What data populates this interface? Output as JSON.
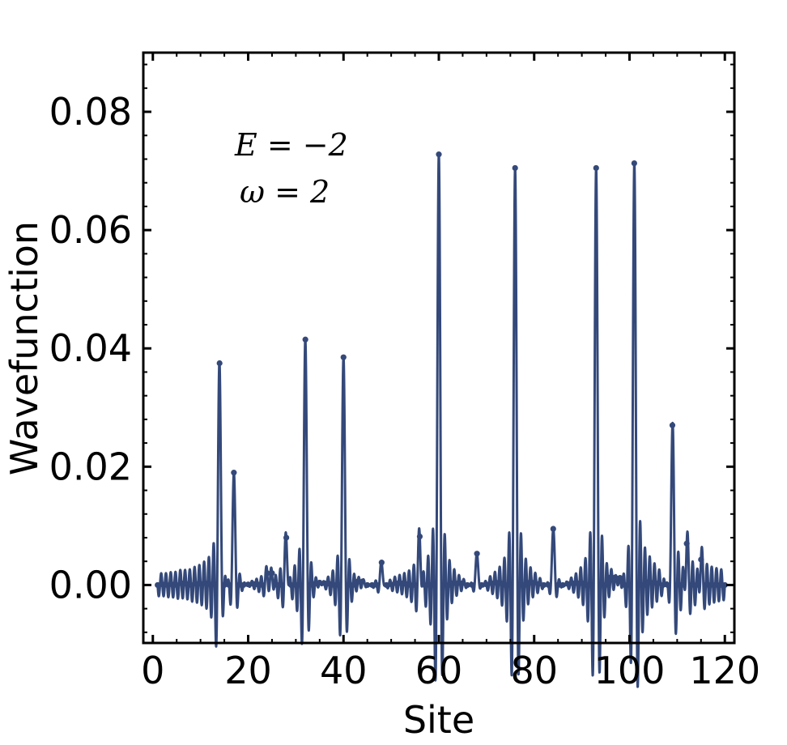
{
  "chart_data": {
    "type": "line",
    "title": "",
    "xlabel": "Site",
    "ylabel": "Wavefunction",
    "xlim": [
      -2,
      122
    ],
    "ylim": [
      -0.0098,
      0.09
    ],
    "xticks": [
      0,
      20,
      40,
      60,
      80,
      100,
      120
    ],
    "xtick_labels": [
      "0",
      "20",
      "40",
      "60",
      "80",
      "100",
      "120"
    ],
    "yticks": [
      0.0,
      0.02,
      0.04,
      0.06,
      0.08
    ],
    "ytick_labels": [
      "0.00",
      "0.02",
      "0.04",
      "0.06",
      "0.08"
    ],
    "grid": false,
    "line_color": "#34497a",
    "annotations": [
      "E = −2",
      "ω = 2"
    ],
    "series": [
      {
        "x": [
          1,
          2,
          3,
          4,
          5,
          6,
          7,
          8,
          9,
          10,
          11,
          12,
          13,
          14,
          15,
          16,
          17,
          18,
          19,
          20,
          21,
          22,
          23,
          24,
          25,
          26,
          27,
          28,
          29,
          30,
          31,
          32,
          33,
          34,
          35,
          36,
          37,
          38,
          39,
          40,
          41,
          42,
          43,
          44,
          45,
          46,
          47,
          48,
          49,
          50,
          51,
          52,
          53,
          54,
          55,
          56,
          57,
          58,
          59,
          60,
          61,
          62,
          63,
          64,
          65,
          66,
          67,
          68,
          69,
          70,
          71,
          72,
          73,
          74,
          75,
          76,
          77,
          78,
          79,
          80,
          81,
          82,
          83,
          84,
          85,
          86,
          87,
          88,
          89,
          90,
          91,
          92,
          93,
          94,
          95,
          96,
          97,
          98,
          99,
          100,
          101,
          102,
          103,
          104,
          105,
          106,
          107,
          108,
          109,
          110,
          111,
          112,
          113,
          114,
          115,
          116,
          117,
          118,
          119,
          120
        ],
        "values": [
          0.0,
          0.0001,
          0.0,
          0.0001,
          0.0,
          0.0003,
          0.0002,
          0.0,
          0.0002,
          0.0002,
          0.0003,
          0.0001,
          0.0001,
          0.0375,
          0.0,
          0.0,
          0.019,
          0.0,
          0.0,
          0.0001,
          0.0002,
          0.0001,
          0.0,
          0.002,
          0.002,
          0.0,
          0.0,
          0.008,
          0.0,
          0.0,
          0.0,
          0.0415,
          0.0,
          0.0002,
          0.0004,
          0.0003,
          0.0002,
          0.0,
          0.0,
          0.0385,
          0.0,
          0.0,
          0.0006,
          0.0006,
          0.0,
          0.0,
          0.0,
          0.0038,
          0.0,
          0.0001,
          0.0003,
          0.0003,
          0.0002,
          0.0,
          0.0,
          0.0082,
          0.0,
          0.0,
          0.0,
          0.0728,
          0.0,
          0.0,
          0.0003,
          0.0003,
          0.0003,
          0.0,
          0.0,
          0.0053,
          0.0,
          0.0001,
          0.0003,
          0.0004,
          0.0003,
          0.0,
          0.0,
          0.0705,
          0.0,
          0.0,
          0.0004,
          0.0004,
          0.0002,
          0.0,
          0.0,
          0.0095,
          0.0,
          0.0,
          0.0002,
          0.0003,
          0.0003,
          0.0003,
          0.0,
          0.0,
          0.0705,
          0.0,
          0.0,
          0.0013,
          0.0013,
          0.0012,
          0.0,
          0.0,
          0.0713,
          0.0,
          0.0,
          0.0005,
          0.0004,
          0.0003,
          0.0,
          0.0,
          0.027,
          0.0,
          0.0,
          0.007,
          0.0,
          0.0,
          0.0043,
          0.0,
          0.0,
          0.0,
          0.0,
          0.0
        ]
      }
    ]
  }
}
